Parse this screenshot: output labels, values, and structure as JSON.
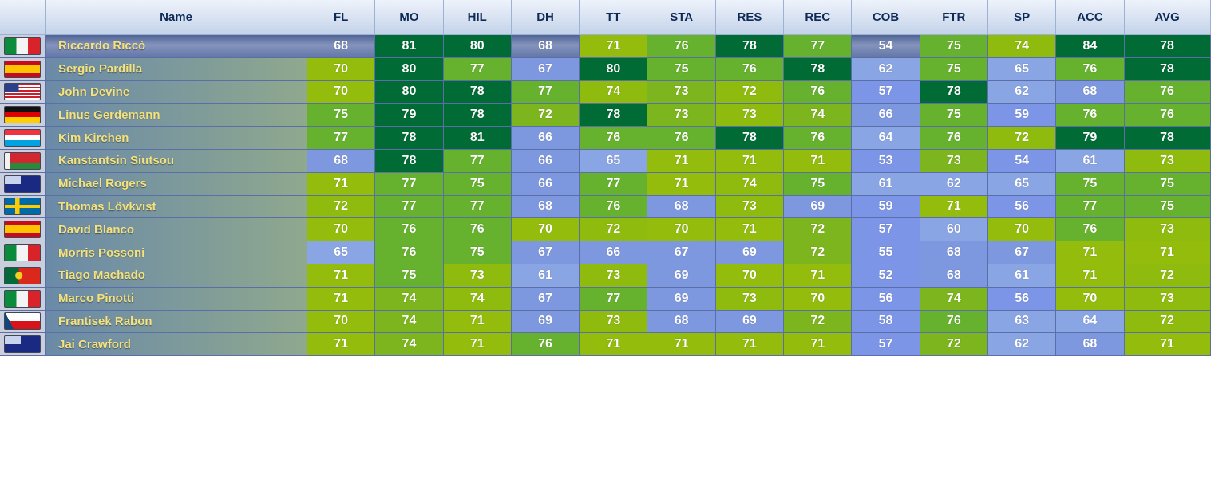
{
  "columns": [
    "",
    "Name",
    "FL",
    "MO",
    "HIL",
    "DH",
    "TT",
    "STA",
    "RES",
    "REC",
    "COB",
    "FTR",
    "SP",
    "ACC",
    "AVG"
  ],
  "palette": {
    "s1": "#036834",
    "s2": "#64b02d",
    "s3": "#8eba0e",
    "s4": "#88a2e2",
    "s5": "#7490e5",
    "name_gradient_left": "#6a8aa8",
    "name_gradient_right": "#8fa88e"
  },
  "riders": [
    {
      "name": "Riccardo Riccò",
      "flag": "italy-flag",
      "selected": true,
      "stats": [
        68,
        81,
        80,
        68,
        71,
        76,
        78,
        77,
        54,
        75,
        74,
        84,
        78
      ]
    },
    {
      "name": "Sergio Pardilla",
      "flag": "spain-flag",
      "stats": [
        70,
        80,
        77,
        67,
        80,
        75,
        76,
        78,
        62,
        75,
        65,
        76,
        78
      ]
    },
    {
      "name": "John Devine",
      "flag": "usa-flag",
      "stats": [
        70,
        80,
        78,
        77,
        74,
        73,
        72,
        76,
        57,
        78,
        62,
        68,
        76
      ]
    },
    {
      "name": "Linus Gerdemann",
      "flag": "germany-flag",
      "stats": [
        75,
        79,
        78,
        72,
        78,
        73,
        73,
        74,
        66,
        75,
        59,
        76,
        76
      ]
    },
    {
      "name": "Kim Kirchen",
      "flag": "luxembourg-flag",
      "stats": [
        77,
        78,
        81,
        66,
        76,
        76,
        78,
        76,
        64,
        76,
        72,
        79,
        78
      ]
    },
    {
      "name": "Kanstantsin Siutsou",
      "flag": "belarus-flag",
      "stats": [
        68,
        78,
        77,
        66,
        65,
        71,
        71,
        71,
        53,
        73,
        54,
        61,
        73
      ]
    },
    {
      "name": "Michael Rogers",
      "flag": "australia-flag",
      "stats": [
        71,
        77,
        75,
        66,
        77,
        71,
        74,
        75,
        61,
        62,
        65,
        75,
        75
      ]
    },
    {
      "name": "Thomas Lövkvist",
      "flag": "sweden-flag",
      "stats": [
        72,
        77,
        77,
        68,
        76,
        68,
        73,
        69,
        59,
        71,
        56,
        77,
        75
      ]
    },
    {
      "name": "David Blanco",
      "flag": "spain-flag",
      "stats": [
        70,
        76,
        76,
        70,
        72,
        70,
        71,
        72,
        57,
        60,
        70,
        76,
        73
      ]
    },
    {
      "name": "Morris Possoni",
      "flag": "italy-flag",
      "stats": [
        65,
        76,
        75,
        67,
        66,
        67,
        69,
        72,
        55,
        68,
        67,
        71,
        71
      ]
    },
    {
      "name": "Tiago Machado",
      "flag": "portugal-flag",
      "stats": [
        71,
        75,
        73,
        61,
        73,
        69,
        70,
        71,
        52,
        68,
        61,
        71,
        72
      ]
    },
    {
      "name": "Marco Pinotti",
      "flag": "italy-flag",
      "stats": [
        71,
        74,
        74,
        67,
        77,
        69,
        73,
        70,
        56,
        74,
        56,
        70,
        73
      ]
    },
    {
      "name": "Frantisek Rabon",
      "flag": "czech-flag",
      "stats": [
        70,
        74,
        71,
        69,
        73,
        68,
        69,
        72,
        58,
        76,
        63,
        64,
        72
      ]
    },
    {
      "name": "Jai Crawford",
      "flag": "australia-flag",
      "stats": [
        71,
        74,
        71,
        76,
        71,
        71,
        71,
        71,
        57,
        72,
        62,
        68,
        71
      ]
    }
  ]
}
